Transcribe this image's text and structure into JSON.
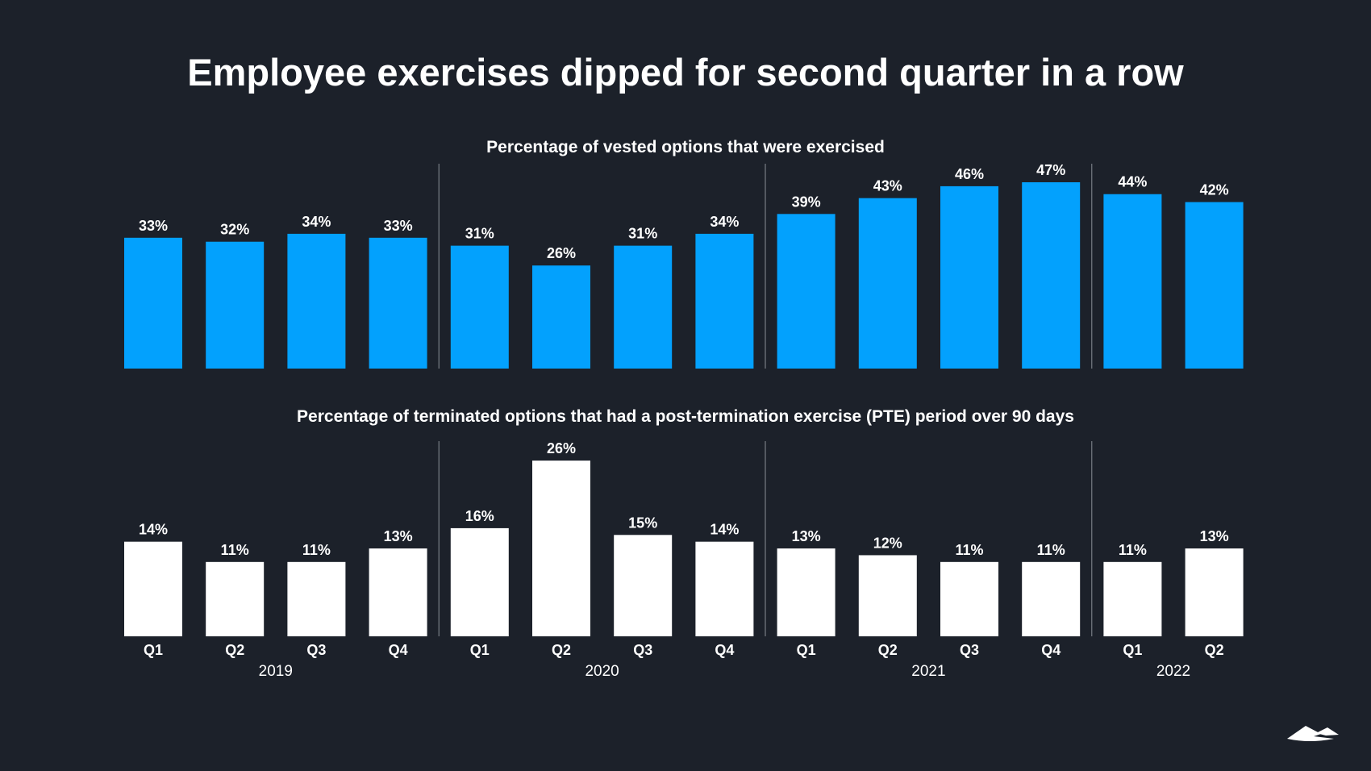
{
  "title": "Employee exercises dipped for second quarter in a row",
  "colors": {
    "background": "#1c212a",
    "top_bars": "#03a1fd",
    "bottom_bars": "#ffffff",
    "divider": "#8a8f96"
  },
  "logo_icon": "mountain-logo-icon",
  "chart_data": [
    {
      "type": "bar",
      "title": "Percentage of vested options that were exercised",
      "categories": [
        "Q1",
        "Q2",
        "Q3",
        "Q4",
        "Q1",
        "Q2",
        "Q3",
        "Q4",
        "Q1",
        "Q2",
        "Q3",
        "Q4",
        "Q1",
        "Q2"
      ],
      "groups": [
        "2019",
        "2019",
        "2019",
        "2019",
        "2020",
        "2020",
        "2020",
        "2020",
        "2021",
        "2021",
        "2021",
        "2021",
        "2022",
        "2022"
      ],
      "values": [
        33,
        32,
        34,
        33,
        31,
        26,
        31,
        34,
        39,
        43,
        46,
        47,
        44,
        42
      ],
      "labels": [
        "33%",
        "32%",
        "34%",
        "33%",
        "31%",
        "26%",
        "31%",
        "34%",
        "39%",
        "43%",
        "46%",
        "47%",
        "44%",
        "42%"
      ],
      "unit": "%",
      "ylim": [
        0,
        47
      ]
    },
    {
      "type": "bar",
      "title": "Percentage of terminated options that had a post-termination exercise (PTE) period over 90 days",
      "categories": [
        "Q1",
        "Q2",
        "Q3",
        "Q4",
        "Q1",
        "Q2",
        "Q3",
        "Q4",
        "Q1",
        "Q2",
        "Q3",
        "Q4",
        "Q1",
        "Q2"
      ],
      "groups": [
        "2019",
        "2019",
        "2019",
        "2019",
        "2020",
        "2020",
        "2020",
        "2020",
        "2021",
        "2021",
        "2021",
        "2021",
        "2022",
        "2022"
      ],
      "values": [
        14,
        11,
        11,
        13,
        16,
        26,
        15,
        14,
        13,
        12,
        11,
        11,
        11,
        13
      ],
      "labels": [
        "14%",
        "11%",
        "11%",
        "13%",
        "16%",
        "26%",
        "15%",
        "14%",
        "13%",
        "12%",
        "11%",
        "11%",
        "11%",
        "13%"
      ],
      "unit": "%",
      "ylim": [
        0,
        26
      ]
    }
  ],
  "years": [
    "2019",
    "2020",
    "2021",
    "2022"
  ]
}
